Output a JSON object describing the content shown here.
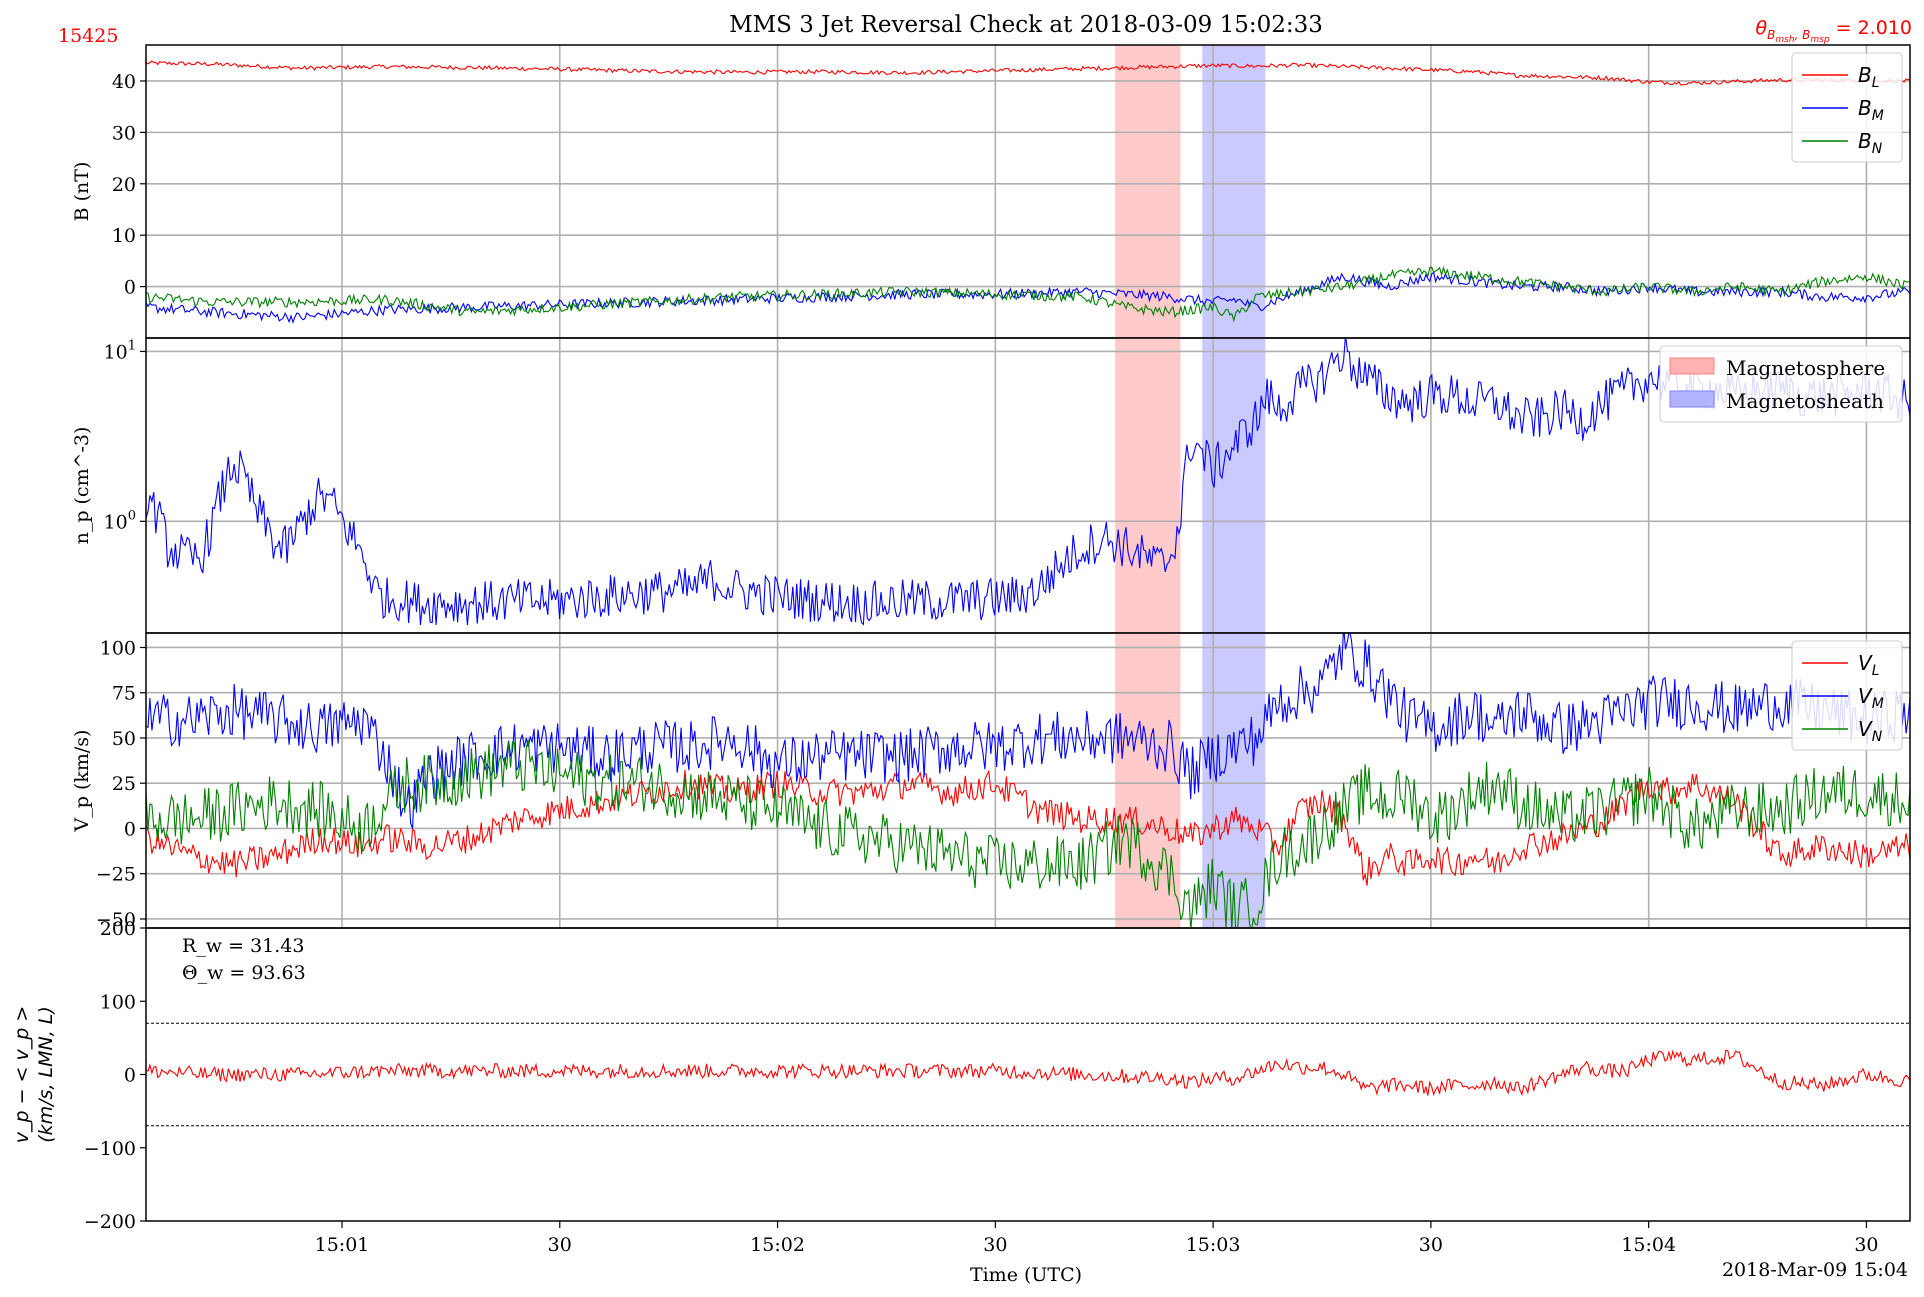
{
  "figure": {
    "title": "MMS 3 Jet Reversal Check at 2018-03-09 15:02:33",
    "id_label": "15425",
    "theta_label": "θ_{B_{msh},B_{msp}} = 2.010",
    "theta_value": 2.01,
    "xlabel": "Time (UTC)",
    "date_label": "2018-Mar-09 15:04",
    "colors": {
      "red": "#ff0000",
      "blue": "#0000ff",
      "green": "#008000",
      "msp_shade": "#ffb3b3",
      "msh_shade": "#b3b3ff"
    }
  },
  "chart_data": [
    {
      "panel": "B",
      "type": "line",
      "ylabel": "B (nT)",
      "ylim": [
        -10,
        47
      ],
      "yticks": [
        0,
        10,
        20,
        30,
        40
      ],
      "x_range_seconds_after_15_00": [
        37,
        118
      ],
      "xticks": [
        {
          "s": 46,
          "label": "15:01"
        },
        {
          "s": 56,
          "label": "30"
        },
        {
          "s": 66,
          "label": "15:02"
        },
        {
          "s": 76,
          "label": "30"
        },
        {
          "s": 86,
          "label": "15:03"
        },
        {
          "s": 96,
          "label": "30"
        },
        {
          "s": 106,
          "label": "15:04"
        },
        {
          "s": 116,
          "label": "30"
        }
      ],
      "grid": true,
      "legend": "top-right",
      "series": [
        {
          "name": "B_L",
          "color": "#ff0000",
          "t": [
            37,
            40,
            44,
            48,
            52,
            56,
            60,
            64,
            68,
            72,
            76,
            80,
            84,
            86,
            88,
            90,
            94,
            98,
            100,
            104,
            106,
            108,
            112,
            116,
            118
          ],
          "values": [
            43.5,
            43.3,
            42.5,
            42.8,
            42.6,
            42.3,
            41.9,
            41.7,
            41.8,
            41.6,
            42.0,
            42.4,
            42.8,
            43.0,
            42.9,
            43.1,
            42.5,
            41.8,
            41.1,
            40.6,
            39.8,
            39.6,
            40.2,
            40.1,
            40.0
          ],
          "noise": 0.4
        },
        {
          "name": "B_M",
          "color": "#0000ff",
          "t": [
            37,
            40,
            44,
            48,
            52,
            56,
            60,
            64,
            68,
            72,
            76,
            80,
            82,
            84,
            86,
            87,
            88,
            90,
            92,
            94,
            96,
            98,
            100,
            102,
            104,
            106,
            108,
            110,
            112,
            114,
            116,
            118
          ],
          "values": [
            -4,
            -5,
            -6,
            -4.5,
            -4,
            -3.5,
            -3,
            -2.5,
            -2,
            -1.5,
            -1.5,
            -1,
            -1.5,
            -2,
            -3,
            -2.5,
            -4,
            -1,
            2,
            0,
            2,
            1,
            0,
            0,
            -1,
            0,
            -1,
            -1,
            -1,
            -2,
            -2,
            -1
          ],
          "noise": 1.0
        },
        {
          "name": "B_N",
          "color": "#008000",
          "t": [
            37,
            40,
            44,
            48,
            52,
            56,
            60,
            64,
            68,
            72,
            76,
            80,
            82,
            84,
            86,
            87,
            88,
            90,
            92,
            94,
            96,
            98,
            100,
            102,
            104,
            106,
            108,
            110,
            112,
            114,
            116,
            118
          ],
          "values": [
            -2,
            -3,
            -3,
            -2.5,
            -5,
            -4,
            -3,
            -2,
            -1.5,
            -1,
            -1.5,
            -2,
            -4,
            -5,
            -4,
            -6,
            -2,
            -1,
            0,
            2,
            3,
            2,
            1,
            0,
            -1,
            0,
            -1,
            0,
            -1,
            1,
            2,
            0
          ],
          "noise": 1.0
        }
      ],
      "shaded_regions": [
        {
          "name": "Magnetosphere",
          "t": [
            81.5,
            84.5
          ],
          "color": "#ffb3b3"
        },
        {
          "name": "Magnetosheath",
          "t": [
            85.5,
            88.4
          ],
          "color": "#b3b3ff"
        }
      ]
    },
    {
      "panel": "n",
      "type": "line",
      "ylabel": "n_p (cm^-3)",
      "yscale": "log",
      "ylim": [
        0.22,
        12
      ],
      "yticks": [
        {
          "v": 1,
          "label": "10^0"
        },
        {
          "v": 10,
          "label": "10^1"
        }
      ],
      "grid": true,
      "legend": "top-right",
      "legend_entries": [
        "Magnetosphere",
        "Magnetosheath"
      ],
      "series": [
        {
          "name": "n_p",
          "color": "#0000ff",
          "t": [
            37,
            37.5,
            38,
            39,
            39.5,
            40,
            40.5,
            41,
            41.5,
            42,
            43,
            43.5,
            44,
            45,
            45.5,
            46,
            46.5,
            47,
            47.5,
            48,
            48.5,
            49,
            49.5,
            50,
            52,
            54,
            56,
            58,
            60,
            62,
            63,
            64,
            66,
            68,
            70,
            72,
            74,
            76,
            77,
            78,
            79,
            80,
            81,
            82,
            83,
            83.5,
            84,
            84.5,
            85,
            86,
            87,
            88,
            88.5,
            89,
            90,
            91,
            92,
            92.5,
            93,
            94,
            95,
            96,
            97,
            98,
            99,
            100,
            101,
            102,
            103,
            104,
            105,
            106,
            107,
            108,
            109,
            110,
            111,
            112,
            113,
            114,
            115,
            116,
            117,
            118
          ],
          "values": [
            1.4,
            1.1,
            0.7,
            0.6,
            0.6,
            0.9,
            1.5,
            2.2,
            1.8,
            1.2,
            0.7,
            0.7,
            0.9,
            1.4,
            1.3,
            1.0,
            0.8,
            0.6,
            0.4,
            0.35,
            0.35,
            0.34,
            0.33,
            0.33,
            0.33,
            0.34,
            0.34,
            0.36,
            0.38,
            0.4,
            0.46,
            0.4,
            0.36,
            0.34,
            0.33,
            0.34,
            0.34,
            0.35,
            0.36,
            0.4,
            0.55,
            0.7,
            0.8,
            0.7,
            0.6,
            0.55,
            0.6,
            1.0,
            3.0,
            2.0,
            2.8,
            4.0,
            5.5,
            4.5,
            6.0,
            7.0,
            10.0,
            8.0,
            7.0,
            5.5,
            5.0,
            5.5,
            5.5,
            5.0,
            5.0,
            4.0,
            4.0,
            4.5,
            4.0,
            5.0,
            6.0,
            7.0,
            6.5,
            6.0,
            6.0,
            5.5,
            6.0,
            6.0,
            5.5,
            5.5,
            5.5,
            6.0,
            5.5,
            5.0
          ],
          "noise": 0.13
        }
      ],
      "shaded_regions": [
        {
          "name": "Magnetosphere",
          "t": [
            81.5,
            84.5
          ],
          "color": "#ffb3b3"
        },
        {
          "name": "Magnetosheath",
          "t": [
            85.5,
            88.4
          ],
          "color": "#b3b3ff"
        }
      ]
    },
    {
      "panel": "V",
      "type": "line",
      "ylabel": "V_p (km/s)",
      "ylim": [
        -55,
        108
      ],
      "yticks": [
        -50,
        -25,
        0,
        25,
        50,
        75,
        100
      ],
      "grid": true,
      "legend": "top-right",
      "series": [
        {
          "name": "V_L",
          "color": "#ff0000",
          "t": [
            37,
            39,
            41,
            43,
            45,
            47,
            48,
            50,
            52,
            54,
            56,
            58,
            60,
            62,
            64,
            66,
            68,
            70,
            72,
            74,
            76,
            78,
            80,
            82,
            84,
            85,
            86,
            87,
            88,
            89,
            90,
            91,
            92,
            93,
            94,
            95,
            96,
            97,
            98,
            99,
            100,
            102,
            104,
            105,
            106,
            107,
            108,
            110,
            112,
            114,
            116,
            118
          ],
          "values": [
            -5,
            -15,
            -20,
            -15,
            -5,
            -10,
            -5,
            -10,
            -5,
            5,
            10,
            15,
            20,
            25,
            20,
            25,
            20,
            20,
            25,
            20,
            25,
            10,
            5,
            5,
            0,
            -5,
            0,
            5,
            0,
            -10,
            10,
            15,
            5,
            -25,
            -15,
            -20,
            -15,
            -20,
            -15,
            -20,
            -10,
            -5,
            5,
            15,
            25,
            20,
            25,
            15,
            -15,
            -10,
            -15,
            -10
          ],
          "noise": 8
        },
        {
          "name": "V_M",
          "color": "#0000ff",
          "t": [
            37,
            39,
            41,
            43,
            45,
            47,
            48,
            49,
            50,
            52,
            54,
            56,
            58,
            60,
            62,
            64,
            66,
            68,
            70,
            72,
            74,
            76,
            78,
            80,
            82,
            84,
            85,
            86,
            87,
            88,
            89,
            90,
            91,
            92,
            93,
            94,
            95,
            96,
            97,
            98,
            99,
            100,
            101,
            102,
            104,
            106,
            108,
            110,
            112,
            114,
            116,
            118
          ],
          "values": [
            60,
            60,
            65,
            60,
            55,
            60,
            40,
            10,
            30,
            40,
            45,
            45,
            40,
            45,
            45,
            50,
            35,
            40,
            40,
            40,
            45,
            45,
            50,
            50,
            50,
            45,
            30,
            40,
            45,
            50,
            70,
            75,
            80,
            100,
            90,
            75,
            60,
            55,
            60,
            65,
            55,
            65,
            60,
            55,
            60,
            70,
            70,
            65,
            70,
            65,
            60,
            65
          ],
          "noise": 15
        },
        {
          "name": "V_N",
          "color": "#008000",
          "t": [
            37,
            39,
            41,
            43,
            45,
            47,
            48,
            49,
            50,
            52,
            54,
            56,
            58,
            60,
            62,
            64,
            66,
            68,
            70,
            72,
            74,
            76,
            78,
            80,
            82,
            84,
            85,
            86,
            87,
            88,
            89,
            90,
            91,
            92,
            93,
            94,
            95,
            96,
            97,
            98,
            99,
            100,
            102,
            104,
            106,
            108,
            110,
            112,
            114,
            116,
            118
          ],
          "values": [
            5,
            5,
            10,
            15,
            10,
            0,
            15,
            25,
            25,
            30,
            35,
            30,
            25,
            25,
            20,
            15,
            10,
            0,
            -5,
            -10,
            -15,
            -20,
            -20,
            -20,
            -5,
            -25,
            -45,
            -30,
            -45,
            -40,
            -15,
            -10,
            0,
            10,
            20,
            15,
            20,
            5,
            10,
            20,
            25,
            15,
            5,
            10,
            20,
            0,
            10,
            10,
            20,
            20,
            15
          ],
          "noise": 16
        }
      ],
      "shaded_regions": [
        {
          "name": "Magnetosphere",
          "t": [
            81.5,
            84.5
          ],
          "color": "#ffb3b3"
        },
        {
          "name": "Magnetosheath",
          "t": [
            85.5,
            88.4
          ],
          "color": "#b3b3ff"
        }
      ]
    },
    {
      "panel": "dV",
      "type": "line",
      "ylabel_line1": "v_p − < v_p >",
      "ylabel_line2": "(km/s, LMN, L)",
      "ylim": [
        -200,
        200
      ],
      "yticks": [
        -200,
        -100,
        0,
        100,
        200
      ],
      "grid": false,
      "reference_lines": [
        70,
        -70
      ],
      "annotations": [
        "R_w = 31.43",
        "Θ_w = 93.63"
      ],
      "R_w": 31.43,
      "Theta_w": 93.63,
      "series": [
        {
          "name": "v_p - <v_p>",
          "color": "#ff0000",
          "t": [
            37,
            40,
            44,
            48,
            52,
            56,
            60,
            64,
            68,
            72,
            76,
            80,
            84,
            85,
            86,
            87,
            88,
            89,
            90,
            91,
            92,
            93,
            94,
            95,
            96,
            97,
            98,
            99,
            100,
            101,
            102,
            103,
            104,
            105,
            106,
            107,
            108,
            110,
            112,
            114,
            116,
            118
          ],
          "values": [
            5,
            0,
            0,
            5,
            5,
            5,
            5,
            5,
            5,
            5,
            5,
            0,
            -5,
            -10,
            -5,
            -5,
            5,
            15,
            10,
            10,
            0,
            -20,
            -15,
            -15,
            -20,
            -15,
            -15,
            -10,
            -20,
            -10,
            0,
            10,
            5,
            5,
            20,
            25,
            20,
            25,
            -10,
            -15,
            0,
            -10
          ],
          "noise": 10
        }
      ]
    }
  ]
}
